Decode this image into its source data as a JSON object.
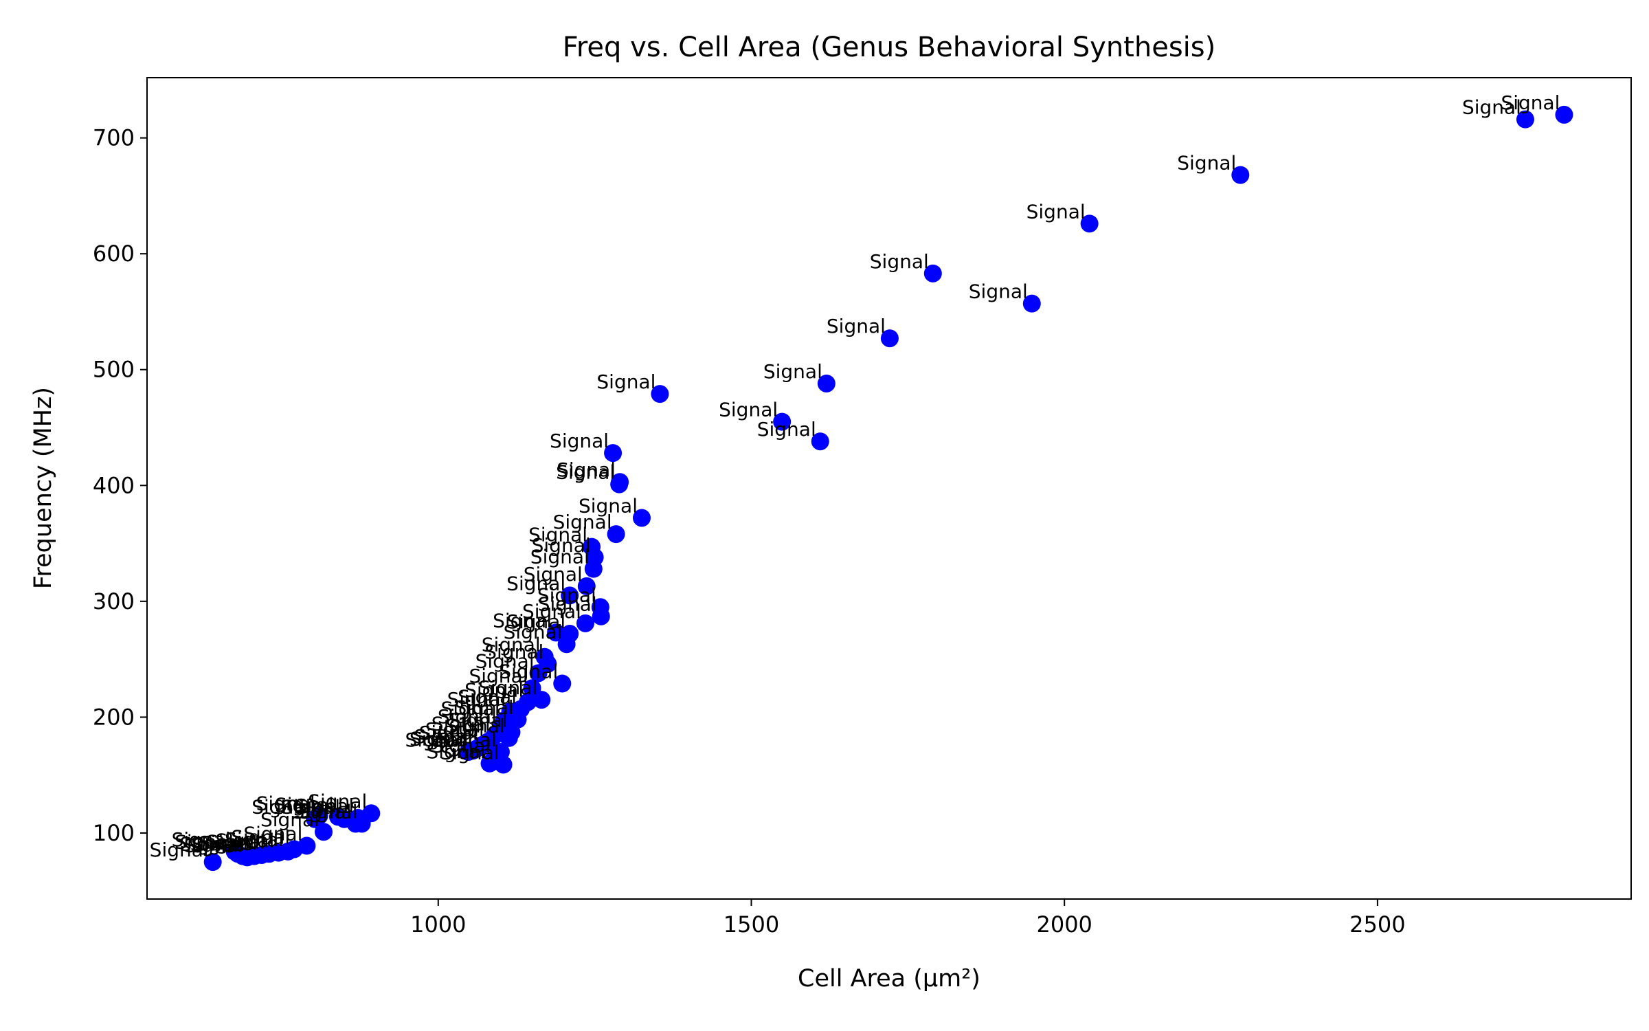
{
  "chart_data": {
    "type": "scatter",
    "title": "Freq vs. Cell Area (Genus Behavioral Synthesis)",
    "xlabel": "Cell Area (μm²)",
    "ylabel": "Frequency (MHz)",
    "xlim": [
      535,
      2905
    ],
    "ylim": [
      43,
      752
    ],
    "xticks": [
      1000,
      1500,
      2000,
      2500
    ],
    "yticks": [
      100,
      200,
      300,
      400,
      500,
      600,
      700
    ],
    "grid": false,
    "marker_color": "#0000ff",
    "point_label": "Signal",
    "series": [
      {
        "points": [
          [
            2798,
            720
          ],
          [
            2736,
            716
          ],
          [
            2281,
            668
          ],
          [
            2040,
            626
          ],
          [
            1790,
            583
          ],
          [
            1948,
            557
          ],
          [
            1721,
            527
          ],
          [
            1620,
            488
          ],
          [
            1354,
            479
          ],
          [
            1549,
            455
          ],
          [
            1610,
            438
          ],
          [
            1279,
            428
          ],
          [
            1290,
            403
          ],
          [
            1289,
            401
          ],
          [
            1325,
            372
          ],
          [
            1284,
            358
          ],
          [
            1245,
            347
          ],
          [
            1250,
            338
          ],
          [
            1248,
            328
          ],
          [
            1237,
            313
          ],
          [
            1210,
            305
          ],
          [
            1259,
            295
          ],
          [
            1260,
            287
          ],
          [
            1235,
            281
          ],
          [
            1210,
            272
          ],
          [
            1205,
            263
          ],
          [
            1188,
            273
          ],
          [
            1170,
            252
          ],
          [
            1175,
            246
          ],
          [
            1160,
            238
          ],
          [
            1198,
            229
          ],
          [
            1150,
            225
          ],
          [
            1165,
            215
          ],
          [
            1143,
            213
          ],
          [
            1132,
            207
          ],
          [
            1115,
            205
          ],
          [
            1127,
            198
          ],
          [
            1105,
            197
          ],
          [
            1100,
            190
          ],
          [
            1117,
            187
          ],
          [
            1090,
            184
          ],
          [
            1113,
            182
          ],
          [
            1080,
            179
          ],
          [
            1070,
            176
          ],
          [
            1062,
            173
          ],
          [
            1055,
            171
          ],
          [
            1048,
            170
          ],
          [
            1100,
            170
          ],
          [
            1090,
            165
          ],
          [
            1082,
            160
          ],
          [
            1104,
            159
          ],
          [
            893,
            117
          ],
          [
            872,
            113
          ],
          [
            868,
            108
          ],
          [
            878,
            108
          ],
          [
            850,
            112
          ],
          [
            840,
            114
          ],
          [
            810,
            115
          ],
          [
            803,
            112
          ],
          [
            817,
            101
          ],
          [
            790,
            89
          ],
          [
            770,
            86
          ],
          [
            760,
            84
          ],
          [
            745,
            83
          ],
          [
            730,
            82
          ],
          [
            718,
            81
          ],
          [
            706,
            80
          ],
          [
            695,
            79
          ],
          [
            688,
            80
          ],
          [
            680,
            82
          ],
          [
            675,
            84
          ],
          [
            640,
            75
          ]
        ]
      }
    ]
  }
}
